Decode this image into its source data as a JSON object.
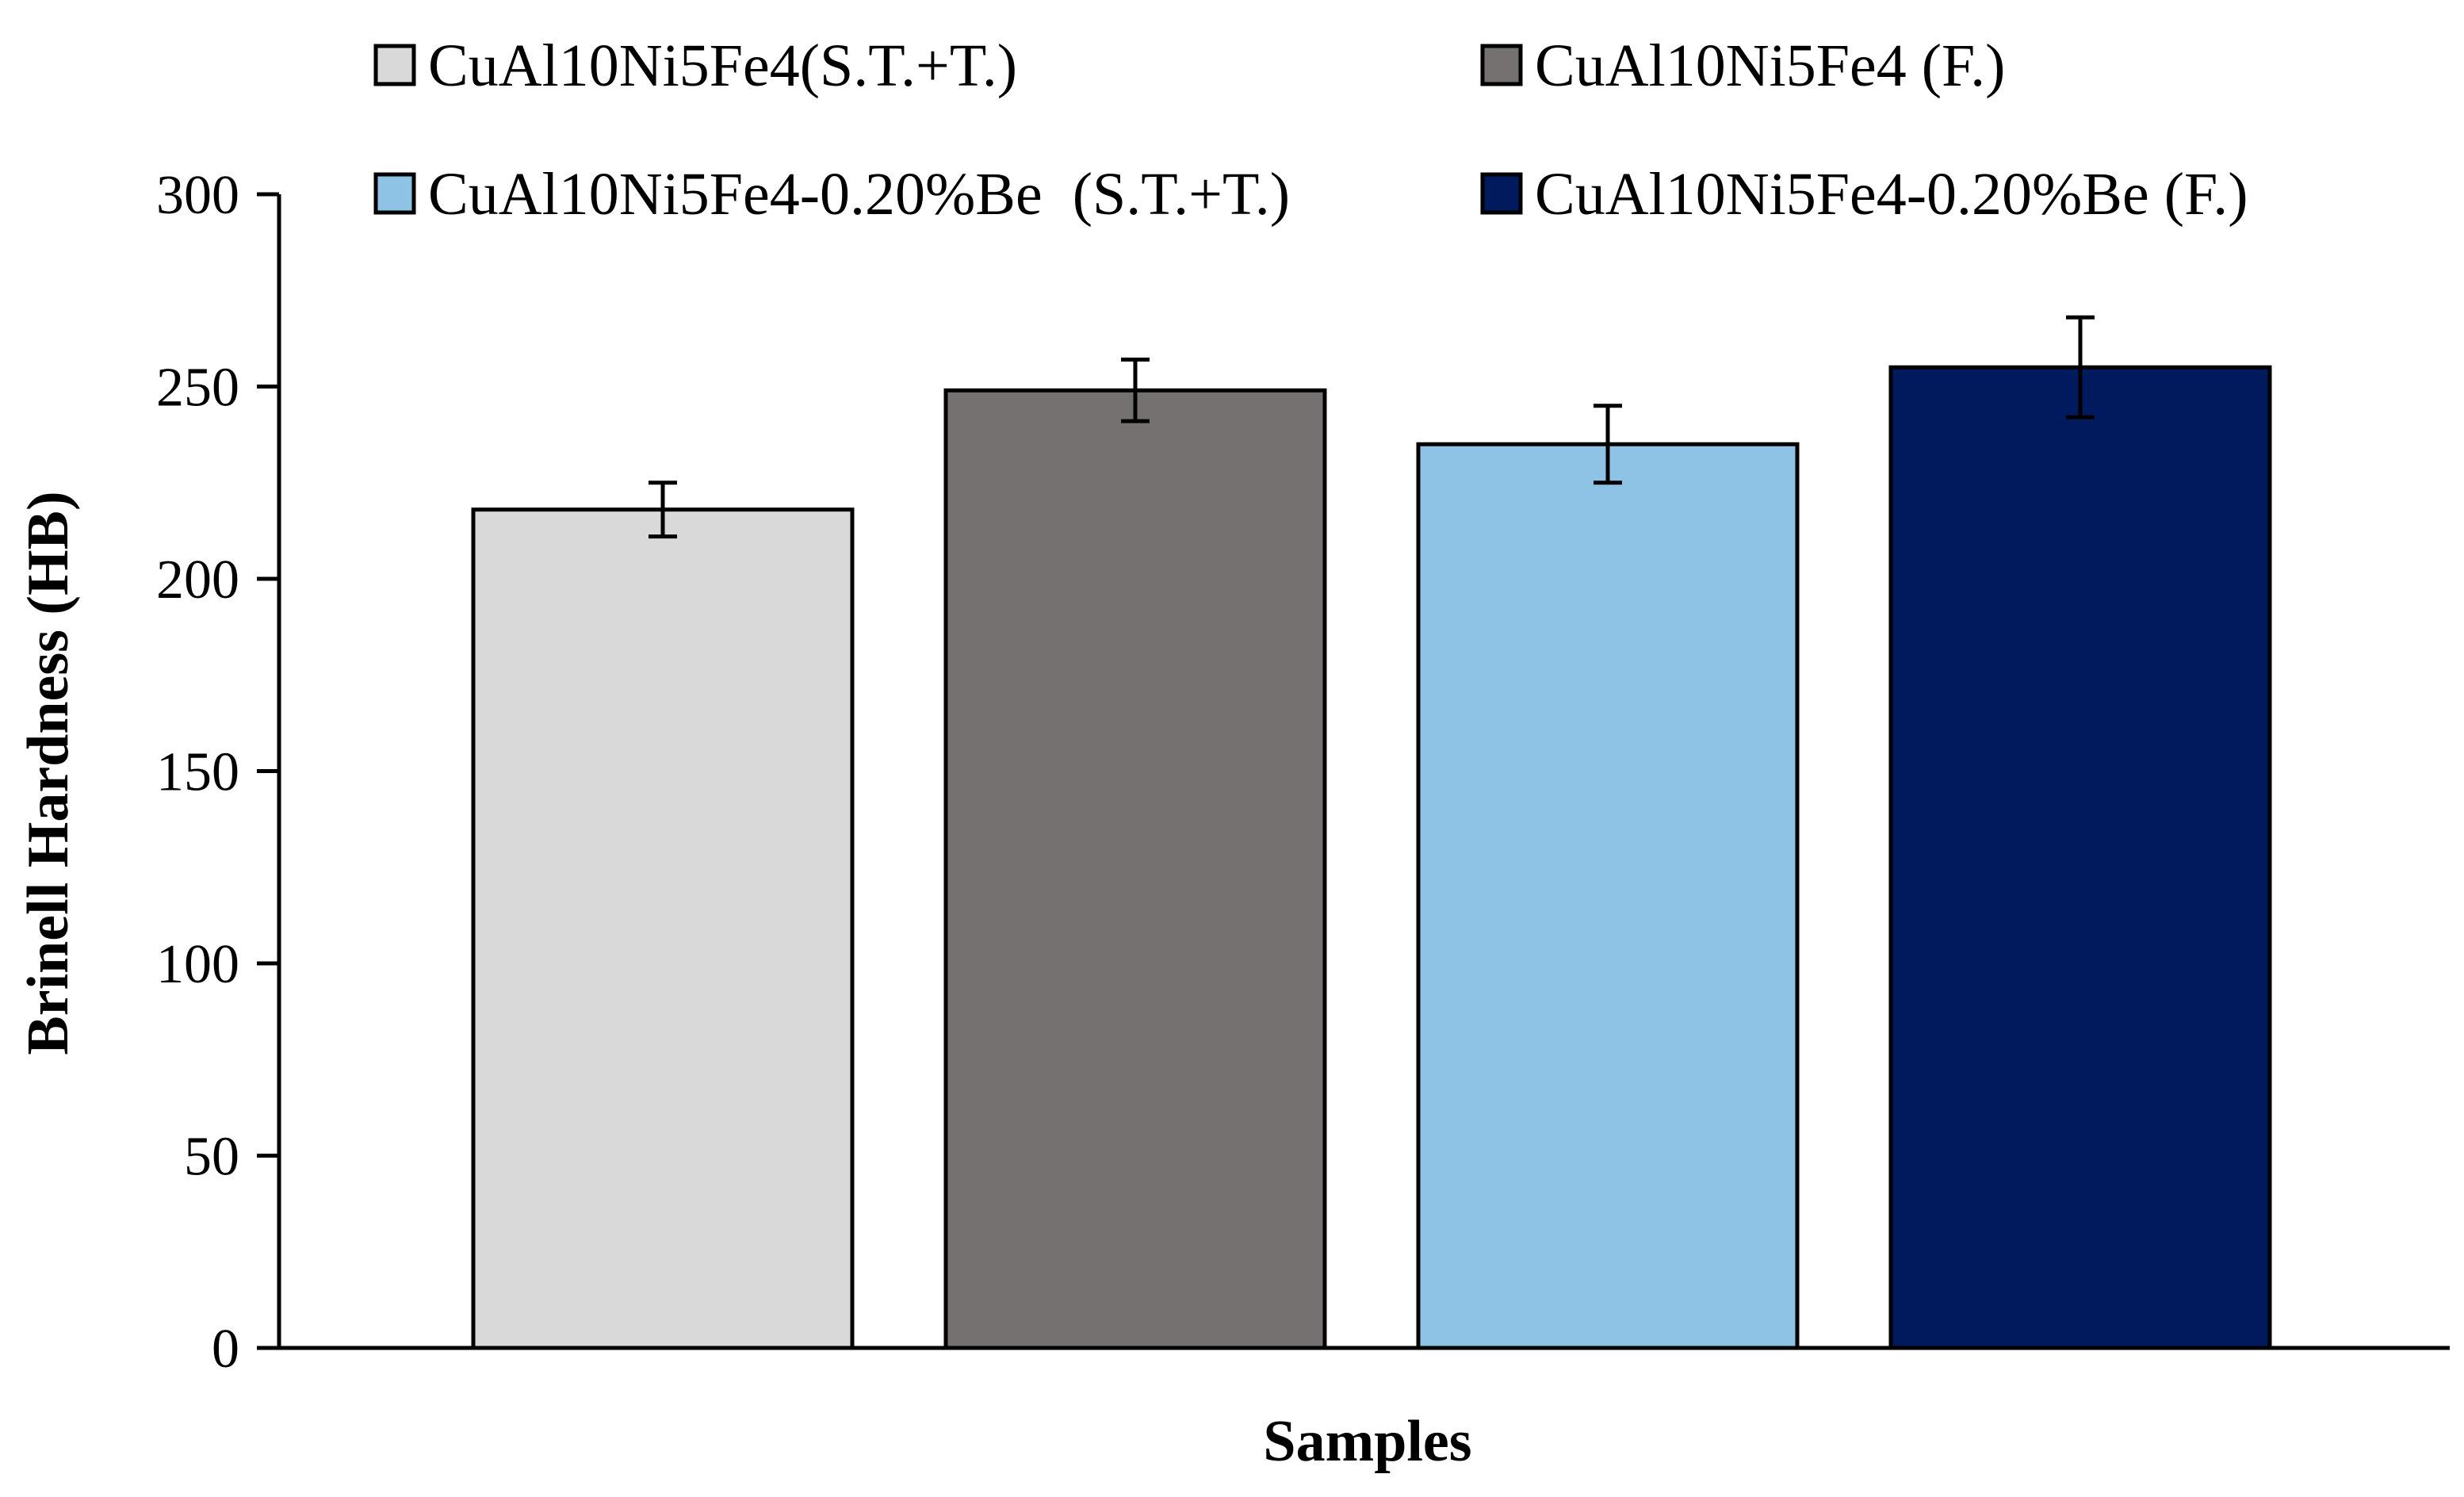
{
  "chart_data": {
    "type": "bar",
    "xlabel": "Samples",
    "ylabel": "Brinell Hardness (HB)",
    "ylim": [
      0,
      300
    ],
    "yticks": [
      0,
      50,
      100,
      150,
      200,
      250,
      300
    ],
    "grid": false,
    "legend_position": "top",
    "series": [
      {
        "name": "CuAl10Ni5Fe4(S.T.+T.)",
        "value": 218,
        "error": 7,
        "color": "#d9d9d9"
      },
      {
        "name": "CuAl10Ni5Fe4 (F.)",
        "value": 249,
        "error": 8,
        "color": "#767171"
      },
      {
        "name": "CuAl10Ni5Fe4-0.20%Be  (S.T.+T.)",
        "value": 235,
        "error": 10,
        "color": "#8ec3e6"
      },
      {
        "name": "CuAl10Ni5Fe4-0.20%Be (F.)",
        "value": 255,
        "error": 13,
        "color": "#001a5e"
      }
    ]
  }
}
